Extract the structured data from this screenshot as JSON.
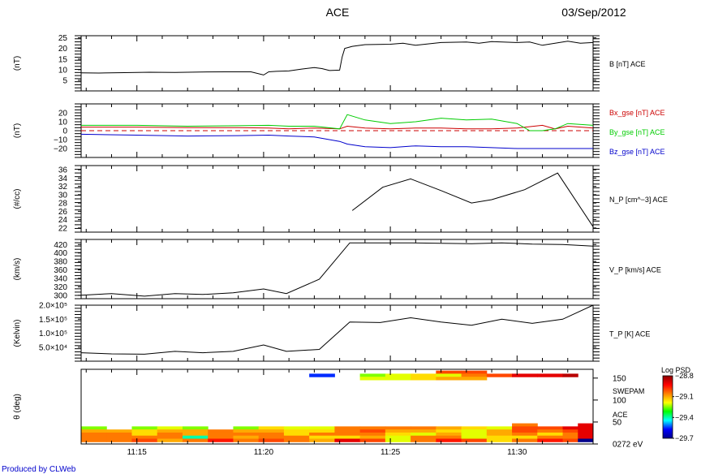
{
  "header": {
    "title": "ACE",
    "date": "03/Sep/2012",
    "footer": "Produced by CLWeb"
  },
  "time_axis": {
    "ticks": [
      "11:15",
      "11:20",
      "11:25",
      "11:30"
    ],
    "tick_minutes": [
      15,
      20,
      25,
      30
    ],
    "range_minutes": [
      12.8,
      33.0
    ]
  },
  "colors": {
    "B": "#000000",
    "Bx": "#cc0000",
    "By": "#00cc00",
    "Bz": "#0000cc",
    "zero_line": "#cc0000"
  },
  "chart_data": [
    {
      "id": "B",
      "type": "line",
      "ylabel": "(nT)",
      "ylim": [
        0,
        26
      ],
      "yticks": [
        "5",
        "10",
        "15",
        "20",
        "25"
      ],
      "ytick_values": [
        5,
        10,
        15,
        20,
        25
      ],
      "series": [
        {
          "name": "B [nT] ACE",
          "label_parts": [
            "B [nT] ",
            "ACE"
          ],
          "color": "#000000",
          "x": [
            12.8,
            13.5,
            14.5,
            15.5,
            16.5,
            17.5,
            18.5,
            19.5,
            20.0,
            20.2,
            20.5,
            21.0,
            21.5,
            22.0,
            22.3,
            22.6,
            23.0,
            23.1,
            23.2,
            23.5,
            24.0,
            25.0,
            25.5,
            26.0,
            27.0,
            28.0,
            28.5,
            29.0,
            30.0,
            30.5,
            31.0,
            32.0,
            32.5,
            33.0
          ],
          "values": [
            8.5,
            8.4,
            8.6,
            8.8,
            8.7,
            8.9,
            9.0,
            9.0,
            7.5,
            9.0,
            9.2,
            9.4,
            10.3,
            11.0,
            10.5,
            9.6,
            9.8,
            16.0,
            20.0,
            21.0,
            21.8,
            22.0,
            22.5,
            21.5,
            22.8,
            23.0,
            22.5,
            23.2,
            22.8,
            23.0,
            21.5,
            23.4,
            22.5,
            22.8
          ]
        }
      ]
    },
    {
      "id": "Bgse",
      "type": "line",
      "ylabel": "(nT)",
      "ylim": [
        -30,
        30
      ],
      "yticks": [
        "20",
        "10",
        "0",
        "−10",
        "−20"
      ],
      "ytick_values": [
        20,
        10,
        0,
        -10,
        -20
      ],
      "series": [
        {
          "name": "Bx_gse [nT] ACE",
          "label_parts": [
            "Bx_gse [nT] ",
            "ACE"
          ],
          "color": "#cc0000",
          "x": [
            12.8,
            15,
            17,
            19,
            20.2,
            21,
            22,
            23.0,
            23.3,
            24,
            25,
            26,
            27,
            28,
            29,
            30,
            31,
            31.5,
            32,
            33
          ],
          "values": [
            4,
            4,
            3.5,
            3.5,
            3,
            2,
            3,
            2,
            5,
            3,
            2,
            3,
            3,
            2,
            2,
            3,
            6,
            2,
            5,
            3
          ]
        },
        {
          "name": "By_gse [nT] ACE",
          "label_parts": [
            "By_gse [nT] ",
            "ACE"
          ],
          "color": "#00cc00",
          "x": [
            12.8,
            15,
            17,
            19,
            20.2,
            21,
            22,
            23.0,
            23.3,
            24,
            25,
            26,
            27,
            28,
            29,
            30,
            30.5,
            31,
            31.5,
            32,
            33
          ],
          "values": [
            6,
            6,
            5,
            5.5,
            6,
            5,
            5,
            2,
            18,
            12,
            8,
            10,
            14,
            12,
            13,
            8,
            0,
            0,
            2,
            8,
            6
          ]
        },
        {
          "name": "Bz_gse [nT] ACE",
          "label_parts": [
            "Bz_gse [nT] ",
            "ACE"
          ],
          "color": "#0000cc",
          "x": [
            12.8,
            15,
            17,
            19,
            20.2,
            21,
            22,
            23.0,
            23.3,
            24,
            25,
            26,
            27,
            28,
            29,
            30,
            31,
            32,
            33
          ],
          "values": [
            -4,
            -5,
            -6,
            -5.5,
            -5,
            -6,
            -7,
            -12,
            -15,
            -18,
            -19,
            -17,
            -18,
            -18,
            -19,
            -20,
            -20,
            -20,
            -20
          ]
        }
      ]
    },
    {
      "id": "N_P",
      "type": "line",
      "ylabel": "(#/cc)",
      "ylim": [
        21,
        37
      ],
      "yticks": [
        "22",
        "24",
        "26",
        "28",
        "30",
        "32",
        "34",
        "36"
      ],
      "ytick_values": [
        22,
        24,
        26,
        28,
        30,
        32,
        34,
        36
      ],
      "series": [
        {
          "name": "N_P [cm^−3] ACE",
          "label_parts": [
            "N_P [cm^−3] ",
            "ACE"
          ],
          "color": "#000000",
          "x": [
            23.5,
            24.7,
            25.8,
            27.0,
            28.2,
            29.0,
            30.3,
            31.6,
            33.0
          ],
          "values": [
            26.2,
            31.8,
            33.8,
            31.0,
            28.0,
            28.8,
            31.2,
            35.2,
            22.3
          ]
        }
      ]
    },
    {
      "id": "V_P",
      "type": "line",
      "ylabel": "(km/s)",
      "ylim": [
        292,
        432
      ],
      "yticks": [
        "300",
        "320",
        "340",
        "360",
        "380",
        "400",
        "420"
      ],
      "ytick_values": [
        300,
        320,
        340,
        360,
        380,
        400,
        420
      ],
      "series": [
        {
          "name": "V_P [km/s] ACE",
          "label_parts": [
            "V_P [km/s] ",
            "ACE"
          ],
          "color": "#000000",
          "x": [
            12.8,
            14.0,
            15.3,
            16.5,
            17.6,
            18.8,
            20.0,
            20.9,
            22.2,
            23.4,
            24.6,
            25.8,
            27.0,
            28.2,
            29.4,
            30.6,
            31.8,
            33.0
          ],
          "values": [
            300,
            304,
            298,
            304,
            302,
            306,
            315,
            304,
            338,
            424,
            424,
            424,
            423,
            422,
            424,
            421,
            420,
            416
          ]
        }
      ]
    },
    {
      "id": "T_P",
      "type": "line",
      "ylabel": "(Kelvin)",
      "ylim": [
        0,
        200000
      ],
      "yticks": [
        "5.0×10⁴",
        "1.0×10⁵",
        "1.5×10⁵",
        "2.0×10⁵"
      ],
      "ytick_values": [
        50000,
        100000,
        150000,
        200000
      ],
      "series": [
        {
          "name": "T_P [K] ACE",
          "label_parts": [
            "T_P [K] ",
            "ACE"
          ],
          "color": "#000000",
          "x": [
            12.8,
            14.0,
            15.3,
            16.5,
            17.6,
            18.8,
            20.0,
            20.9,
            22.2,
            23.4,
            24.6,
            25.8,
            27.0,
            28.2,
            29.4,
            30.6,
            31.8,
            33.0
          ],
          "values": [
            30000,
            26000,
            25000,
            35000,
            30000,
            35000,
            58000,
            35000,
            42000,
            140000,
            138000,
            155000,
            140000,
            128000,
            150000,
            135000,
            150000,
            200000
          ]
        }
      ]
    },
    {
      "id": "SWEPAM_PSD",
      "type": "heatmap",
      "ylabel": "θ (deg)",
      "yticks": [
        "150",
        "100",
        "50",
        "0272 eV"
      ],
      "ytick_values": [
        150,
        100,
        50,
        0
      ],
      "instrument_labels": [
        "SWEPAM",
        "ACE"
      ],
      "colorbar": {
        "title": "Log PSD",
        "max_label": "−28.8",
        "labels": [
          "−29.1",
          "−29.4",
          "−29.7"
        ],
        "range": [
          -29.7,
          -28.8
        ],
        "stops": [
          "#00008b",
          "#0000ff",
          "#00ffff",
          "#00ff00",
          "#ffff00",
          "#ff8000",
          "#ff0000",
          "#8b0000"
        ]
      },
      "x_bins": [
        12.8,
        13.8,
        14.8,
        15.8,
        16.8,
        17.8,
        18.8,
        19.8,
        20.8,
        21.8,
        22.8,
        23.8,
        24.8,
        25.8,
        26.8,
        27.8,
        28.8,
        29.8,
        30.8,
        31.8,
        32.4,
        33.0
      ],
      "rows": [
        {
          "y": [
            160,
            167
          ],
          "values": [
            null,
            null,
            null,
            null,
            null,
            null,
            null,
            null,
            null,
            null,
            null,
            null,
            null,
            null,
            -29.0,
            -29.0,
            null,
            null,
            null,
            null,
            null
          ]
        },
        {
          "y": [
            153,
            160
          ],
          "values": [
            null,
            null,
            null,
            null,
            null,
            null,
            null,
            null,
            null,
            -29.55,
            null,
            -29.25,
            -29.2,
            -29.15,
            -29.2,
            -29.05,
            -29.0,
            -28.9,
            -28.9,
            -28.85,
            null,
            -28.95
          ]
        },
        {
          "y": [
            146,
            153
          ],
          "values": [
            null,
            null,
            null,
            null,
            null,
            null,
            null,
            null,
            null,
            null,
            null,
            -29.2,
            -29.2,
            -29.15,
            -29.1,
            -29.1,
            null,
            null,
            null,
            null,
            null
          ]
        },
        {
          "y": [
            40,
            47
          ],
          "values": [
            null,
            null,
            null,
            null,
            null,
            null,
            null,
            null,
            null,
            null,
            null,
            null,
            null,
            null,
            null,
            null,
            null,
            -29.05,
            null,
            null,
            -28.9
          ]
        },
        {
          "y": [
            33,
            40
          ],
          "values": [
            -29.25,
            null,
            -29.25,
            -29.2,
            -29.25,
            null,
            -29.25,
            -29.15,
            -29.2,
            -29.2,
            -29.05,
            -29.05,
            -29.05,
            -29.05,
            -29.1,
            -29.15,
            -29.2,
            -29.0,
            -29.0,
            -28.9,
            -28.9
          ]
        },
        {
          "y": [
            26,
            33
          ],
          "values": [
            -29.1,
            -29.1,
            -29.15,
            -29.1,
            -29.1,
            -29.05,
            -29.1,
            -29.1,
            -29.15,
            -29.15,
            -29.05,
            -29.0,
            -29.1,
            -29.1,
            -29.15,
            -29.2,
            -29.1,
            -29.0,
            -29.05,
            -29.0,
            -28.9
          ]
        },
        {
          "y": [
            19,
            26
          ],
          "values": [
            -29.05,
            -29.05,
            -29.15,
            -29.05,
            -29.1,
            -29.05,
            -29.05,
            -29.05,
            -29.15,
            -29.05,
            -29.05,
            -29.05,
            -29.15,
            -29.2,
            -29.1,
            -29.2,
            -29.1,
            -29.05,
            -29.15,
            -29.05,
            -28.9
          ]
        },
        {
          "y": [
            12,
            19
          ],
          "values": [
            -29.05,
            -29.05,
            -29.05,
            -29.05,
            -29.4,
            -29.05,
            -29.1,
            -29.05,
            -29.05,
            -29.15,
            -29.15,
            -29.1,
            -29.2,
            -29.05,
            -29.05,
            -29.2,
            -29.15,
            -29.15,
            -29.05,
            -29.05,
            -28.9
          ]
        },
        {
          "y": [
            5,
            12
          ],
          "values": [
            -29.05,
            -29.05,
            -29.0,
            -29.1,
            -29.05,
            -28.95,
            -29.05,
            -29.0,
            -29.05,
            -29.1,
            -28.9,
            -29.0,
            -29.2,
            -29.05,
            -28.95,
            -29.0,
            -29.15,
            -29.05,
            -28.95,
            -29.0,
            -29.7
          ]
        }
      ]
    }
  ]
}
